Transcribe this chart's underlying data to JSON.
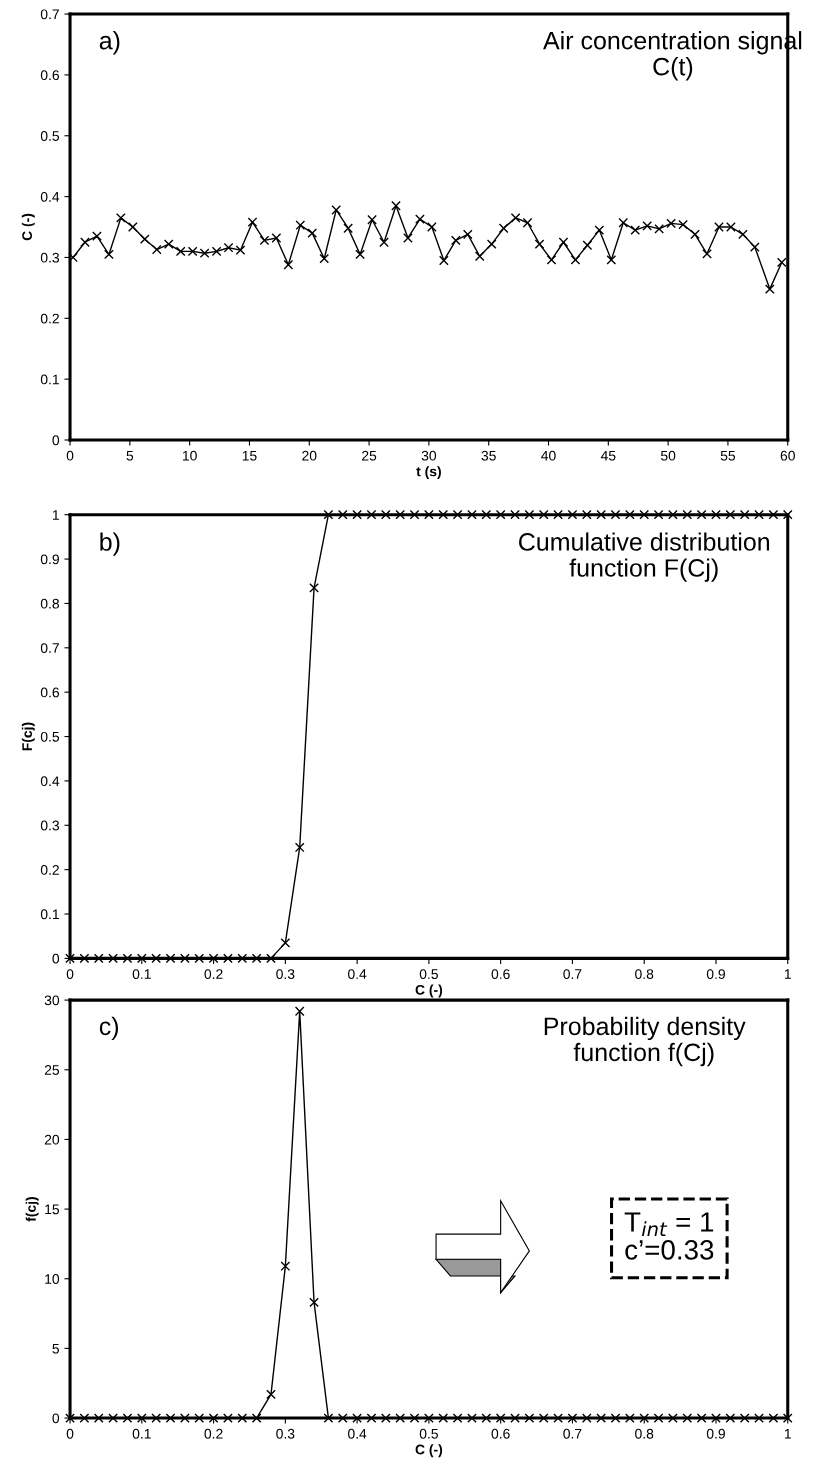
{
  "chart_data": [
    {
      "type": "line",
      "title": "Air concentration signal\nC(t)",
      "xlabel": "t (s)",
      "ylabel": "C (-)",
      "annotations": [
        "a)"
      ],
      "marker": "cross",
      "line_style": "solid",
      "grid": false,
      "legend": false,
      "x": [
        0.25,
        1.25,
        2.25,
        3.25,
        4.25,
        5.25,
        6.25,
        7.25,
        8.25,
        9.25,
        10.25,
        11.25,
        12.25,
        13.25,
        14.25,
        15.25,
        16.25,
        17.25,
        18.25,
        19.25,
        20.25,
        21.25,
        22.25,
        23.25,
        24.25,
        25.25,
        26.25,
        27.25,
        28.25,
        29.25,
        30.25,
        31.25,
        32.25,
        33.25,
        34.25,
        35.25,
        36.25,
        37.25,
        38.25,
        39.25,
        40.25,
        41.25,
        42.25,
        43.25,
        44.25,
        45.25,
        46.25,
        47.25,
        48.25,
        49.25,
        50.25,
        51.25,
        52.25,
        53.25,
        54.25,
        55.25,
        56.25,
        57.25,
        58.5,
        59.5
      ],
      "series": [
        {
          "color": "#000000",
          "values": [
            0.3,
            0.325,
            0.335,
            0.305,
            0.365,
            0.35,
            0.33,
            0.313,
            0.322,
            0.31,
            0.31,
            0.307,
            0.31,
            0.316,
            0.312,
            0.358,
            0.328,
            0.332,
            0.288,
            0.353,
            0.34,
            0.298,
            0.378,
            0.348,
            0.305,
            0.362,
            0.325,
            0.385,
            0.332,
            0.363,
            0.35,
            0.295,
            0.328,
            0.338,
            0.302,
            0.322,
            0.348,
            0.365,
            0.357,
            0.322,
            0.296,
            0.325,
            0.296,
            0.32,
            0.345,
            0.296,
            0.357,
            0.345,
            0.352,
            0.347,
            0.356,
            0.354,
            0.338,
            0.306,
            0.35,
            0.35,
            0.338,
            0.317,
            0.248,
            0.292
          ]
        }
      ],
      "xlim": [
        0,
        60
      ],
      "xticks": [
        0,
        5,
        10,
        15,
        20,
        25,
        30,
        35,
        40,
        45,
        50,
        55,
        60
      ],
      "ylim": [
        0,
        0.7
      ],
      "yticks": [
        0,
        0.1,
        0.2,
        0.3,
        0.4,
        0.5,
        0.6,
        0.7
      ]
    },
    {
      "type": "line",
      "title": "Cumulative distribution\nfunction F(Cj)",
      "xlabel": "C (-)",
      "ylabel": "F(cj)",
      "annotations": [
        "b)"
      ],
      "marker": "cross",
      "line_style": "solid",
      "grid": false,
      "legend": false,
      "x": [
        0,
        0.02,
        0.04,
        0.06,
        0.08,
        0.1,
        0.12,
        0.14,
        0.16,
        0.18,
        0.2,
        0.22,
        0.24,
        0.26,
        0.28,
        0.3,
        0.32,
        0.34,
        0.36,
        0.38,
        0.4,
        0.42,
        0.44,
        0.46,
        0.48,
        0.5,
        0.52,
        0.54,
        0.56,
        0.58,
        0.6,
        0.62,
        0.64,
        0.66,
        0.68,
        0.7,
        0.72,
        0.74,
        0.76,
        0.78,
        0.8,
        0.82,
        0.84,
        0.86,
        0.88,
        0.9,
        0.92,
        0.94,
        0.96,
        0.98,
        1
      ],
      "series": [
        {
          "color": "#000000",
          "values": [
            0,
            0,
            0,
            0,
            0,
            0,
            0,
            0,
            0,
            0,
            0,
            0,
            0,
            0,
            0,
            0.035,
            0.25,
            0.835,
            1,
            1,
            1,
            1,
            1,
            1,
            1,
            1,
            1,
            1,
            1,
            1,
            1,
            1,
            1,
            1,
            1,
            1,
            1,
            1,
            1,
            1,
            1,
            1,
            1,
            1,
            1,
            1,
            1,
            1,
            1,
            1,
            1
          ]
        }
      ],
      "xlim": [
        0,
        1
      ],
      "xticks": [
        0,
        0.1,
        0.2,
        0.3,
        0.4,
        0.5,
        0.6,
        0.7,
        0.8,
        0.9,
        1
      ],
      "ylim": [
        0,
        1
      ],
      "yticks": [
        0,
        0.1,
        0.2,
        0.3,
        0.4,
        0.5,
        0.6,
        0.7,
        0.8,
        0.9,
        1
      ]
    },
    {
      "type": "line",
      "title": "Probability density\nfunction f(Cj)",
      "xlabel": "C (-)",
      "ylabel": "f(cj)",
      "annotations": [
        "c)",
        "T$_{int}$ = 1\nc’=0.33"
      ],
      "marker": "cross",
      "line_style": "solid",
      "grid": false,
      "legend": false,
      "x": [
        0,
        0.02,
        0.04,
        0.06,
        0.08,
        0.1,
        0.12,
        0.14,
        0.16,
        0.18,
        0.2,
        0.22,
        0.24,
        0.26,
        0.28,
        0.3,
        0.32,
        0.34,
        0.36,
        0.38,
        0.4,
        0.42,
        0.44,
        0.46,
        0.48,
        0.5,
        0.52,
        0.54,
        0.56,
        0.58,
        0.6,
        0.62,
        0.64,
        0.66,
        0.68,
        0.7,
        0.72,
        0.74,
        0.76,
        0.78,
        0.8,
        0.82,
        0.84,
        0.86,
        0.88,
        0.9,
        0.92,
        0.94,
        0.96,
        0.98,
        1
      ],
      "series": [
        {
          "color": "#000000",
          "values": [
            0,
            0,
            0,
            0,
            0,
            0,
            0,
            0,
            0,
            0,
            0,
            0,
            0,
            0,
            1.7,
            10.9,
            29.2,
            8.3,
            0,
            0,
            0,
            0,
            0,
            0,
            0,
            0,
            0,
            0,
            0,
            0,
            0,
            0,
            0,
            0,
            0,
            0,
            0,
            0,
            0,
            0,
            0,
            0,
            0,
            0,
            0,
            0,
            0,
            0,
            0,
            0,
            0
          ]
        }
      ],
      "xlim": [
        0,
        1
      ],
      "xticks": [
        0,
        0.1,
        0.2,
        0.3,
        0.4,
        0.5,
        0.6,
        0.7,
        0.8,
        0.9,
        1
      ],
      "ylim": [
        0,
        30
      ],
      "yticks": [
        0,
        5,
        10,
        15,
        20,
        25,
        30
      ]
    }
  ]
}
